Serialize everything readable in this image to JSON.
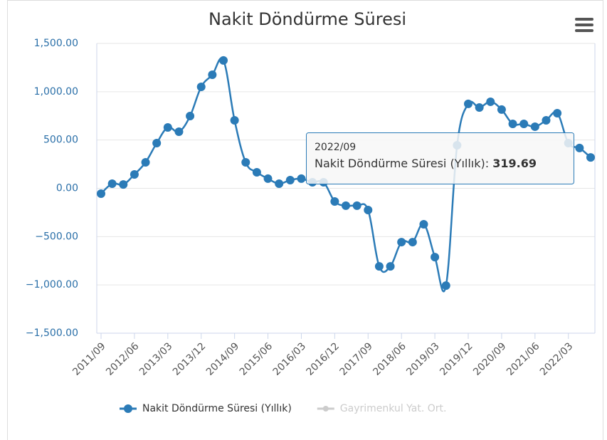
{
  "chart_data": {
    "type": "line",
    "title": "Nakit Döndürme Süresi",
    "categories": [
      "2011/09",
      null,
      null,
      "2012/06",
      null,
      null,
      "2013/03",
      null,
      null,
      "2013/12",
      null,
      null,
      "2014/09",
      null,
      null,
      "2015/06",
      null,
      null,
      "2016/03",
      null,
      null,
      "2016/12",
      null,
      null,
      "2017/09",
      null,
      null,
      "2018/06",
      null,
      null,
      "2019/03",
      null,
      null,
      "2019/12",
      null,
      null,
      "2020/09",
      null,
      null,
      "2021/06",
      null,
      null,
      "2022/03",
      null,
      null
    ],
    "series": [
      {
        "name": "Nakit Döndürme Süresi (Yıllık)",
        "color": "#2b7bb7",
        "values": [
          -55,
          48,
          40,
          144,
          269,
          468,
          630,
          586,
          748,
          1050,
          1176,
          1324,
          704,
          269,
          166,
          100,
          48,
          85,
          100,
          63,
          63,
          -136,
          -180,
          -180,
          -225,
          -808,
          -808,
          -557,
          -557,
          -372,
          -712,
          -1007,
          446,
          874,
          837,
          896,
          815,
          667,
          667,
          638,
          704,
          778,
          468,
          417,
          319.69
        ]
      },
      {
        "name": "Gayrimenkul Yat. Ort.",
        "color": "#cccccc",
        "visible": false
      }
    ],
    "ylim": [
      -1500,
      1500
    ],
    "yticks": [
      {
        "value": -1500,
        "label": "−1,500.00"
      },
      {
        "value": -1000,
        "label": "−1,000.00"
      },
      {
        "value": -500,
        "label": "−500.00"
      },
      {
        "value": 0,
        "label": "0.00"
      },
      {
        "value": 500,
        "label": "500.00"
      },
      {
        "value": 1000,
        "label": "1,000.00"
      },
      {
        "value": 1500,
        "label": "1,500.00"
      }
    ],
    "grid": true,
    "legend": "bottom",
    "tooltip": {
      "category": "2022/09",
      "series": "Nakit Döndürme Süresi (Yıllık)",
      "value": 319.69
    }
  }
}
